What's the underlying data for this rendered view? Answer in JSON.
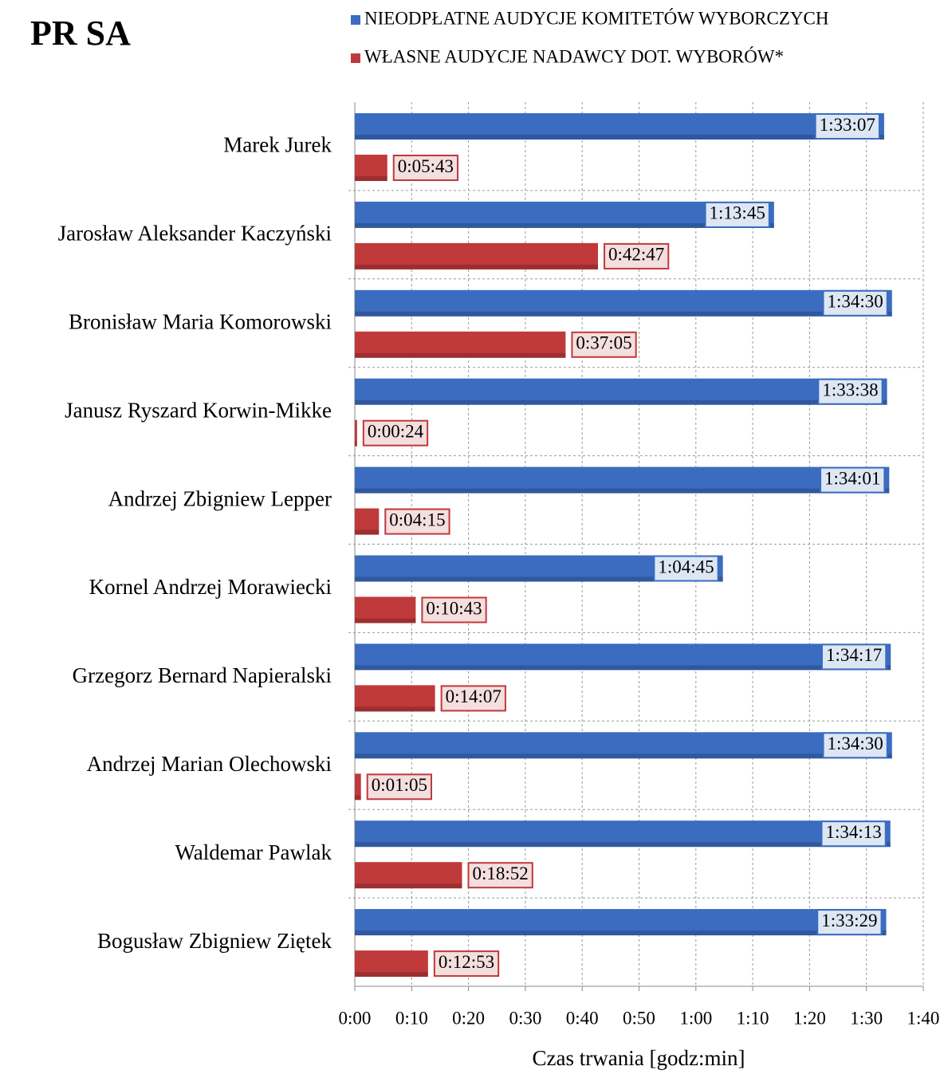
{
  "chart_data": {
    "type": "hbar",
    "title": "PR SA",
    "x_label": "Czas trwania [godz:min]",
    "categories": [
      "Marek Jurek",
      "Jarosław Aleksander Kaczyński",
      "Bronisław Maria Komorowski",
      "Janusz Ryszard Korwin-Mikke",
      "Andrzej Zbigniew Lepper",
      "Kornel Andrzej Morawiecki",
      "Grzegorz Bernard Napieralski",
      "Andrzej Marian Olechowski",
      "Waldemar Pawlak",
      "Bogusław Zbigniew Ziętek"
    ],
    "series": [
      {
        "name": "NIEODPŁATNE AUDYCJE KOMITETÓW WYBORCZYCH",
        "color": "#3b6cc0",
        "values": [
          93.1167,
          73.75,
          94.5,
          93.6333,
          94.0167,
          64.75,
          94.2833,
          94.5,
          94.2167,
          93.4833
        ],
        "value_labels": [
          "1:33:07",
          "1:13:45",
          "1:34:30",
          "1:33:38",
          "1:34:01",
          "1:04:45",
          "1:34:17",
          "1:34:30",
          "1:34:13",
          "1:33:29"
        ]
      },
      {
        "name": "WŁASNE AUDYCJE NADAWCY DOT. WYBORÓW*",
        "color": "#c0393b",
        "values": [
          5.7167,
          42.7833,
          37.0833,
          0.4,
          4.25,
          10.7167,
          14.1167,
          1.0833,
          18.8667,
          12.8833
        ],
        "value_labels": [
          "0:05:43",
          "0:42:47",
          "0:37:05",
          "0:00:24",
          "0:04:15",
          "0:10:43",
          "0:14:07",
          "0:01:05",
          "0:18:52",
          "0:12:53"
        ]
      }
    ],
    "xlim": [
      0,
      100
    ],
    "xticks": [
      {
        "value": 0,
        "label": "0:00"
      },
      {
        "value": 10,
        "label": "0:10"
      },
      {
        "value": 20,
        "label": "0:20"
      },
      {
        "value": 30,
        "label": "0:30"
      },
      {
        "value": 40,
        "label": "0:40"
      },
      {
        "value": 50,
        "label": "0:50"
      },
      {
        "value": 60,
        "label": "1:00"
      },
      {
        "value": 70,
        "label": "1:10"
      },
      {
        "value": 80,
        "label": "1:20"
      },
      {
        "value": 90,
        "label": "1:30"
      },
      {
        "value": 100,
        "label": "1:40"
      }
    ],
    "grid": true,
    "legend": "top"
  }
}
